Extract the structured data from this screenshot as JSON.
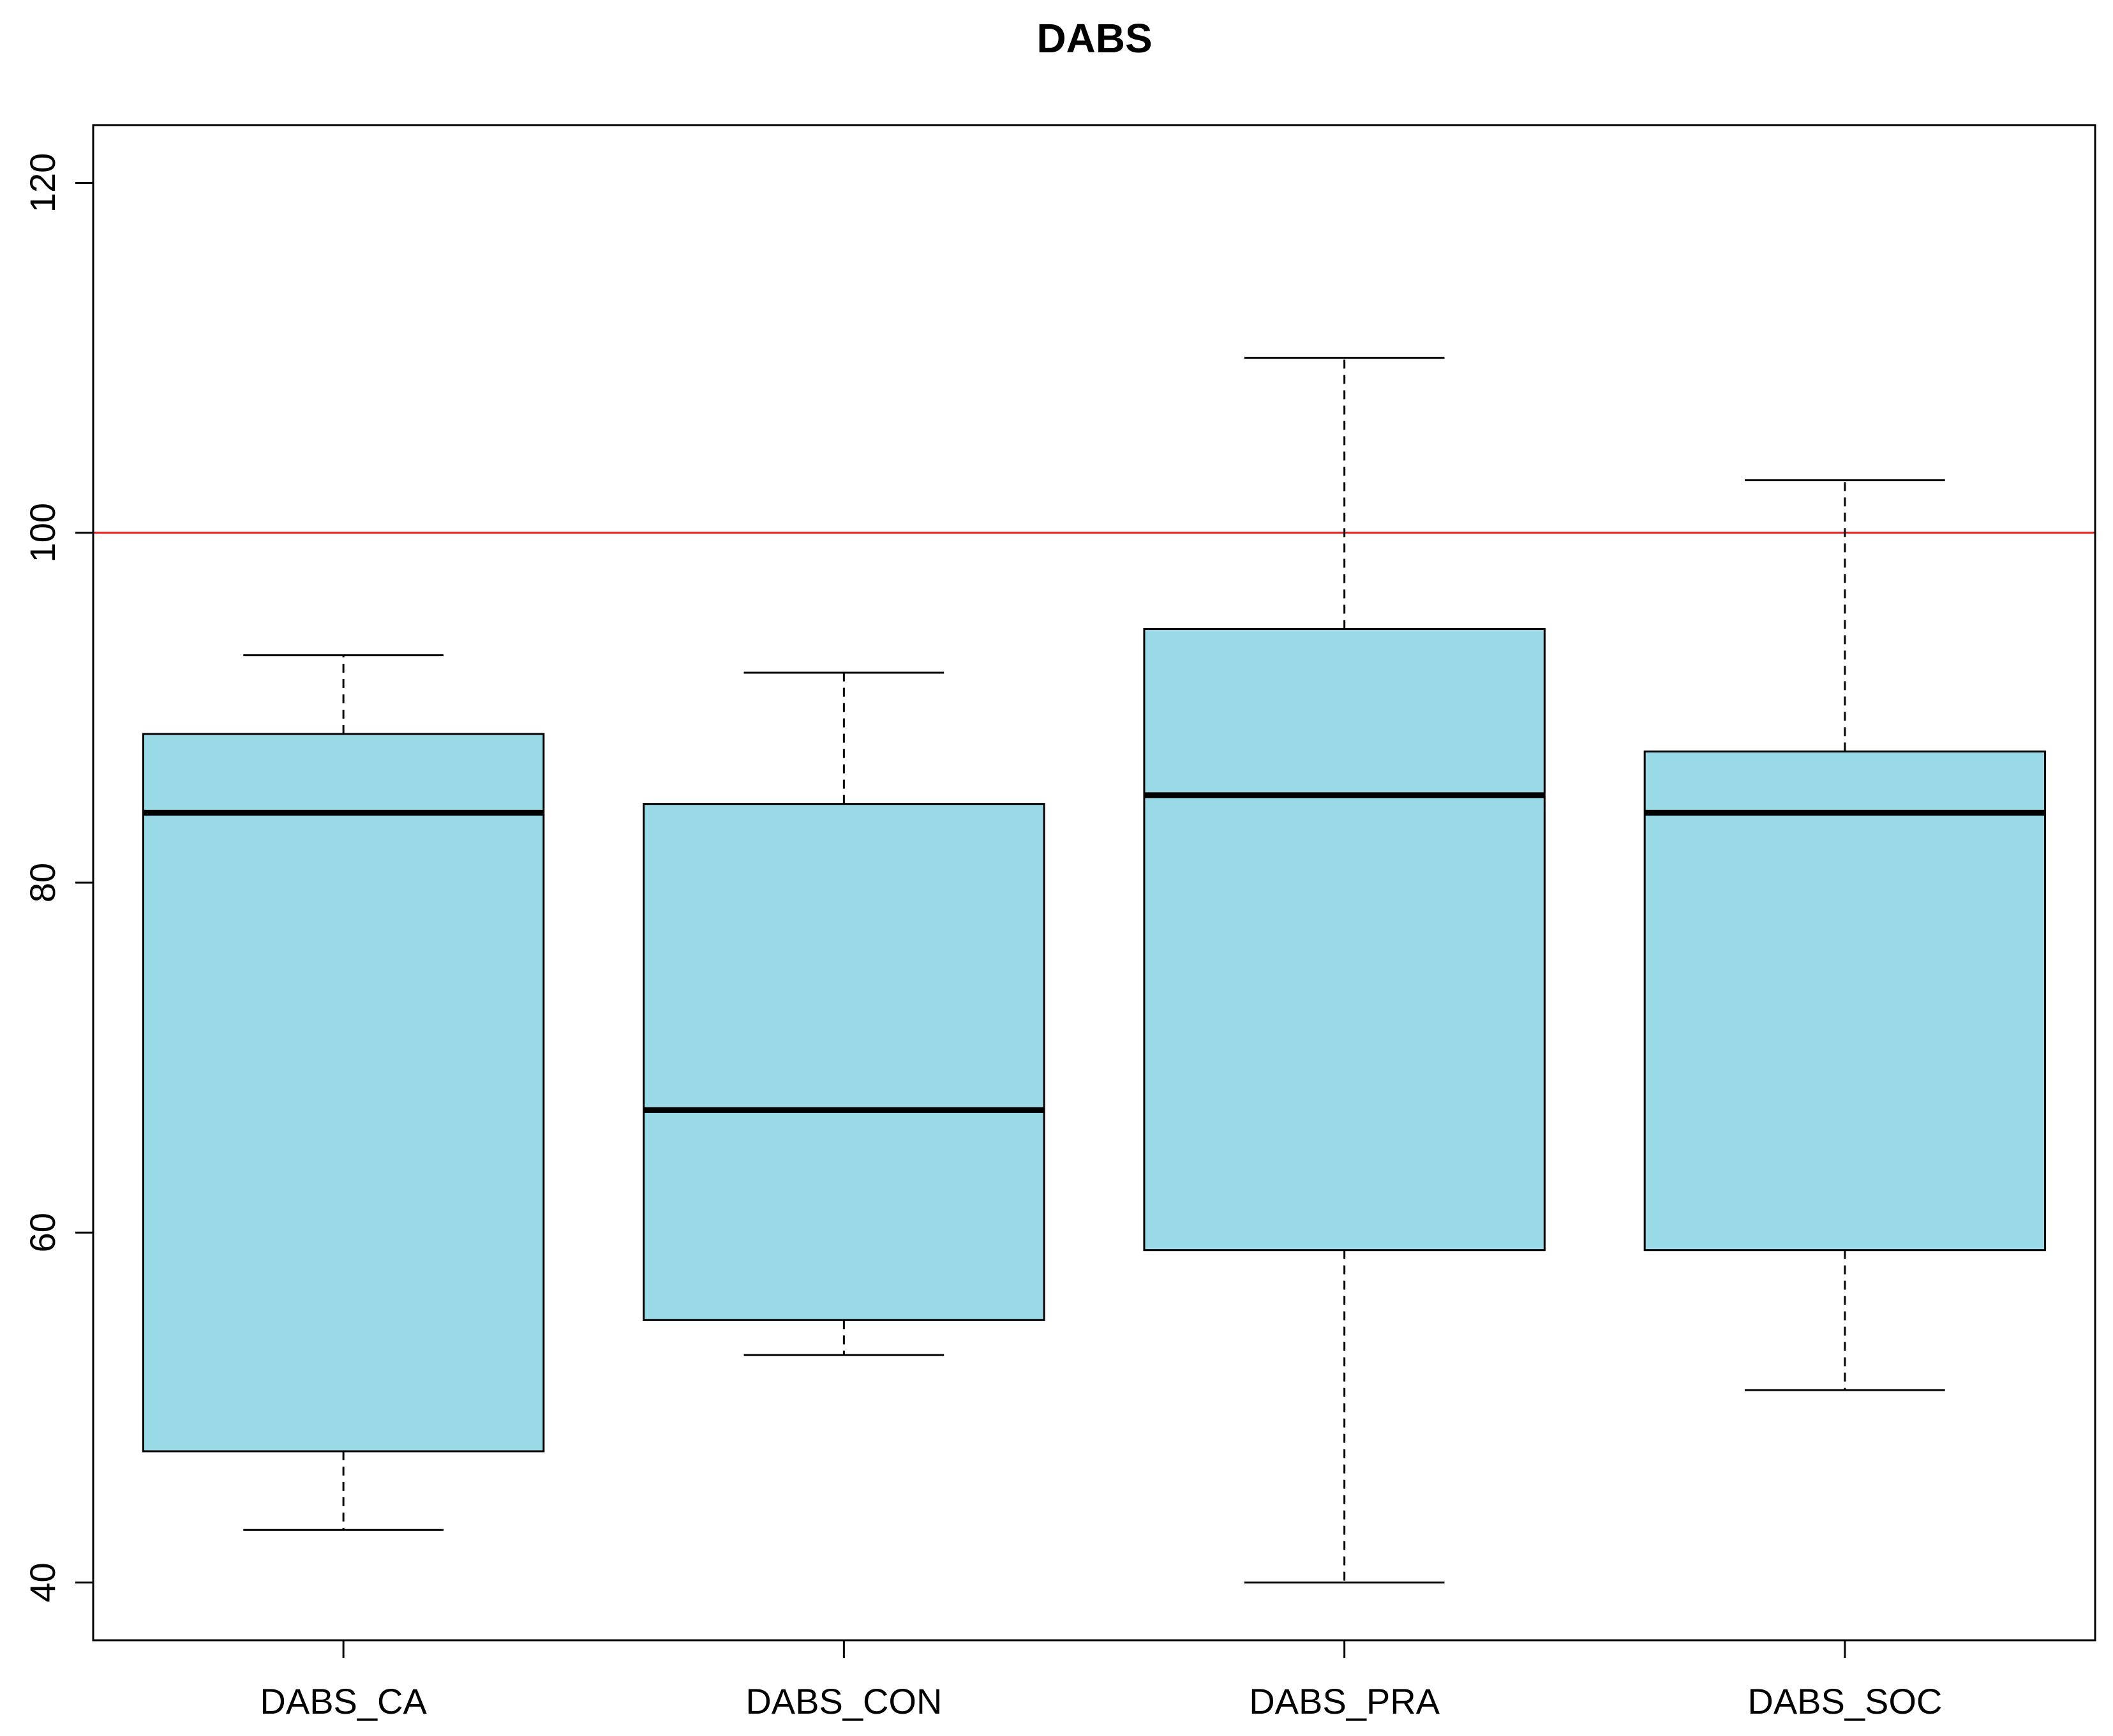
{
  "chart_data": {
    "type": "boxplot",
    "title": "DABS",
    "xlabel": "",
    "ylabel": "",
    "ylim": [
      36.7,
      123.3
    ],
    "yticks": [
      40,
      60,
      80,
      100,
      120
    ],
    "categories": [
      "DABS_CA",
      "DABS_CON",
      "DABS_PRA",
      "DABS_SOC"
    ],
    "boxes": [
      {
        "name": "DABS_CA",
        "min": 43,
        "q1": 47.5,
        "median": 84,
        "q3": 88.5,
        "max": 93
      },
      {
        "name": "DABS_CON",
        "min": 53,
        "q1": 55,
        "median": 67,
        "q3": 84.5,
        "max": 92
      },
      {
        "name": "DABS_PRA",
        "min": 40,
        "q1": 59,
        "median": 85,
        "q3": 94.5,
        "max": 110
      },
      {
        "name": "DABS_SOC",
        "min": 51,
        "q1": 59,
        "median": 84,
        "q3": 87.5,
        "max": 103
      }
    ],
    "reference_line": {
      "y": 100,
      "color": "#e41a1c"
    },
    "box_fill": "#9ad9e6",
    "grid": false,
    "legend": "none"
  }
}
